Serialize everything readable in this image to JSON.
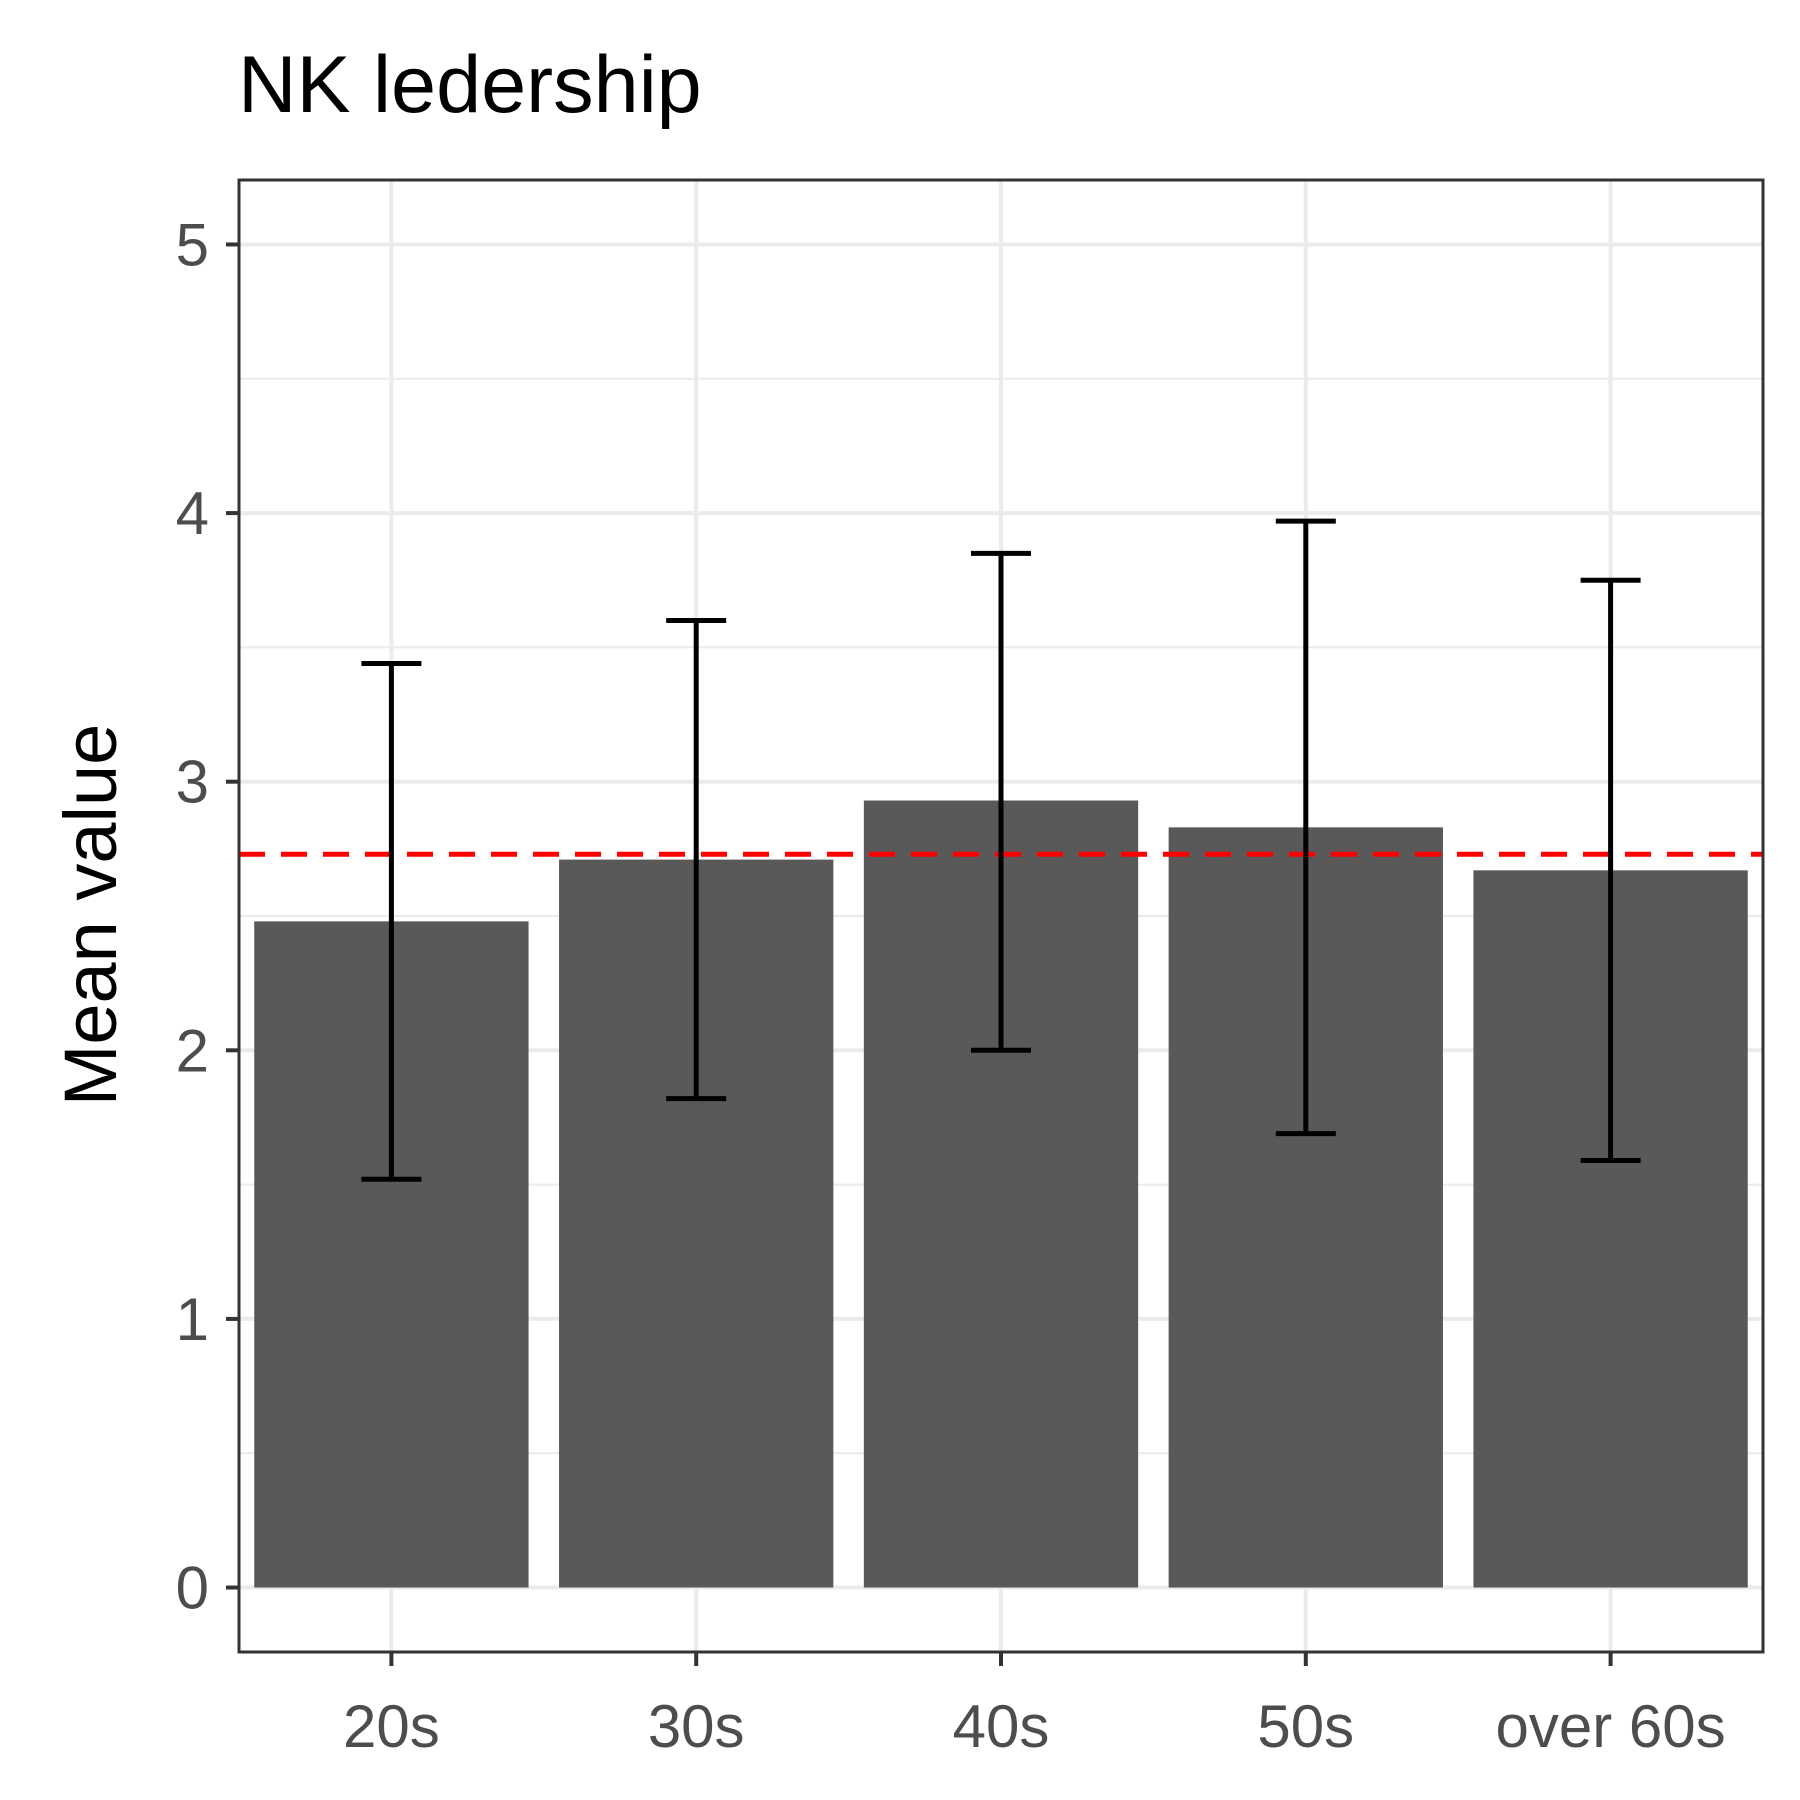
{
  "chart_data": {
    "type": "bar",
    "title": "NK ledership",
    "xlabel": "",
    "ylabel": "Mean value",
    "categories": [
      "20s",
      "30s",
      "40s",
      "50s",
      "over 60s"
    ],
    "values": [
      2.48,
      2.71,
      2.93,
      2.83,
      2.67
    ],
    "error_low": [
      1.52,
      1.82,
      2.0,
      1.69,
      1.59
    ],
    "error_high": [
      3.44,
      3.6,
      3.85,
      3.97,
      3.75
    ],
    "reference_line": {
      "value": 2.73,
      "color": "#ff0000",
      "style": "dashed"
    },
    "ylim": [
      -0.24,
      5.24
    ],
    "yticks": [
      "0",
      "1",
      "2",
      "3",
      "4",
      "5"
    ],
    "ytick_values": [
      0,
      1,
      2,
      3,
      4,
      5
    ],
    "grid": true,
    "legend": "none",
    "colors": {
      "bar": "#595959",
      "error_bar": "#000000",
      "grid": "#ebebeb",
      "panel_border": "#333333",
      "tick_label": "#4d4d4d"
    }
  }
}
